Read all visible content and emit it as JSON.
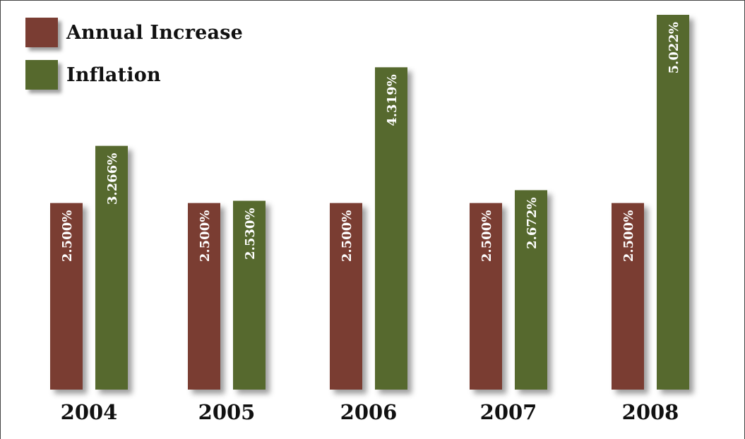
{
  "legend": {
    "annual_label": "Annual Increase",
    "inflation_label": "Inflation"
  },
  "colors": {
    "annual": "#7a3d33",
    "inflation": "#56692d",
    "bar_text": "#ffffff",
    "axis_text": "#111111",
    "frame": "#444444"
  },
  "chart_data": {
    "type": "bar",
    "title": "",
    "xlabel": "",
    "ylabel": "",
    "categories": [
      "2004",
      "2005",
      "2006",
      "2007",
      "2008"
    ],
    "series": [
      {
        "name": "Annual Increase",
        "values": [
          2.5,
          2.5,
          2.5,
          2.5,
          2.5
        ],
        "labels": [
          "2.500%",
          "2.500%",
          "2.500%",
          "2.500%",
          "2.500%"
        ]
      },
      {
        "name": "Inflation",
        "values": [
          3.266,
          2.53,
          4.319,
          2.672,
          5.022
        ],
        "labels": [
          "3.266%",
          "2.530%",
          "4.319%",
          "2.672%",
          "5.022%"
        ]
      }
    ],
    "ylim": [
      0,
      5.022
    ],
    "grid": false,
    "legend_position": "top-left"
  }
}
